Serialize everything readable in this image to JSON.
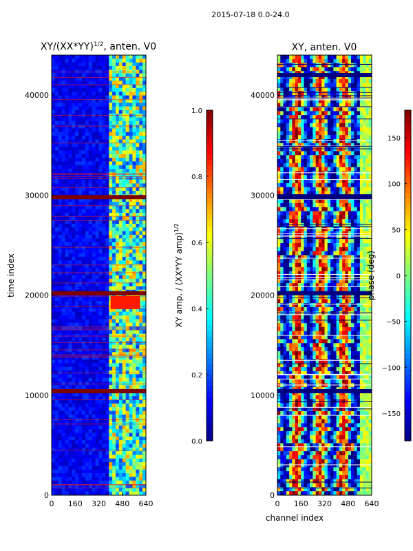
{
  "figure": {
    "suptitle": "2015-07-18 0.0-24.0"
  },
  "chart_data": [
    {
      "type": "heatmap",
      "title": "XY/(XX*YY)",
      "title_exponent": "1/2",
      "title_suffix": ", anten. V0",
      "xlabel": "",
      "ylabel": "time index",
      "xlim": [
        0,
        640
      ],
      "ylim": [
        0,
        44000
      ],
      "xticks": [
        0,
        160,
        320,
        480,
        640
      ],
      "yticks": [
        0,
        10000,
        20000,
        30000,
        40000
      ],
      "colorbar": {
        "label": "XY amp. / (XX*YY amp)",
        "label_exponent": "1/2",
        "range": [
          0.0,
          1.0
        ],
        "ticks": [
          "0.0",
          "0.2",
          "0.4",
          "0.6",
          "0.8",
          "1.0"
        ]
      },
      "colormap": [
        "#00007f",
        "#0000ff",
        "#007fff",
        "#00ffff",
        "#7fff7f",
        "#ffff00",
        "#ff7f00",
        "#ff0000",
        "#7f0000"
      ],
      "background_value": 0.12,
      "high_band_x": [
        400,
        640
      ],
      "high_band_value": 0.45,
      "flagged_rows": [
        10400,
        20200,
        29800
      ],
      "flagged_rows_value": 1.0,
      "saturated_blocks": [
        {
          "x": [
            400,
            600
          ],
          "y": [
            18600,
            19900
          ],
          "value": 0.85
        }
      ]
    },
    {
      "type": "heatmap",
      "title": "XY, anten. V0",
      "xlabel": "channel index",
      "ylabel": "",
      "xlim": [
        0,
        640
      ],
      "ylim": [
        0,
        44000
      ],
      "xticks": [
        0,
        160,
        320,
        480,
        640
      ],
      "yticks": [
        0,
        10000,
        20000,
        30000,
        40000
      ],
      "colorbar": {
        "label": "phase (deg)",
        "range": [
          -180,
          180
        ],
        "ticks": [
          "−150",
          "−100",
          "−50",
          "0",
          "50",
          "100",
          "150"
        ]
      },
      "colormap": [
        "#00007f",
        "#0000ff",
        "#007fff",
        "#00ffff",
        "#7fff7f",
        "#ffff00",
        "#ff7f00",
        "#ff0000",
        "#7f0000"
      ],
      "dark_rows": [
        10400,
        20200,
        29800,
        42000
      ],
      "dark_rows_value": -180
    }
  ]
}
